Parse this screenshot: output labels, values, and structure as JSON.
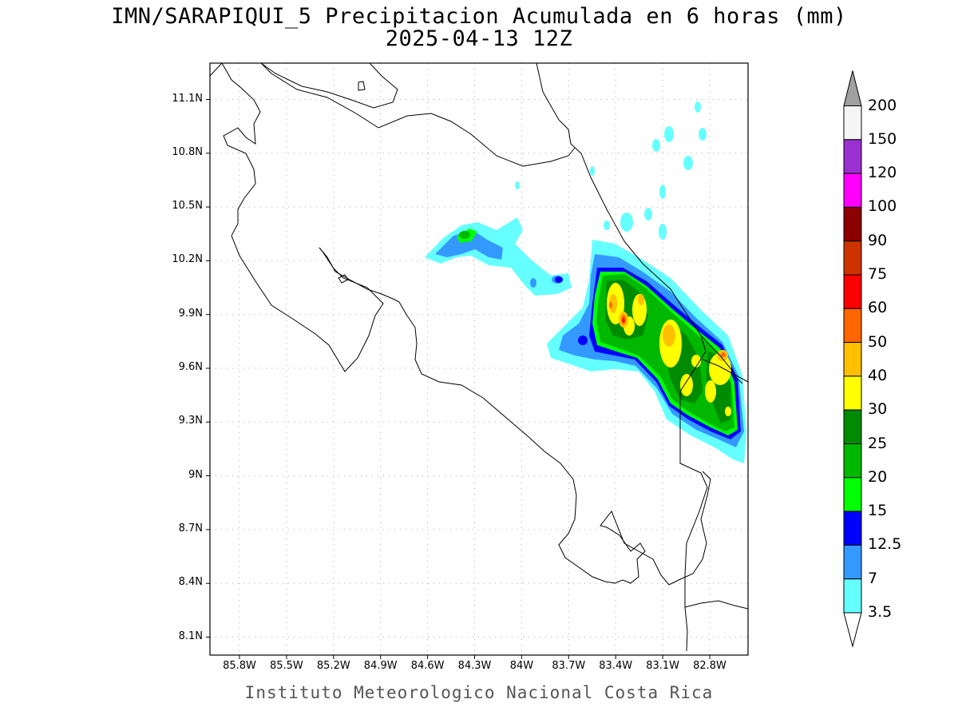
{
  "title": "IMN/SARAPIQUI_5 Precipitacion Acumulada en 6 horas (mm)",
  "subtitle": "2025-04-13 12Z",
  "credit": "Instituto Meteorologico Nacional Costa Rica",
  "map": {
    "lat_ticks": [
      "11.1N",
      "10.8N",
      "10.5N",
      "10.2N",
      "9.9N",
      "9.6N",
      "9.3N",
      "9N",
      "8.7N",
      "8.4N",
      "8.1N"
    ],
    "lon_ticks": [
      "85.8W",
      "85.5W",
      "85.2W",
      "84.9W",
      "84.6W",
      "84.3W",
      "84W",
      "83.7W",
      "83.4W",
      "83.1W",
      "82.8W"
    ],
    "grid": true
  },
  "colorbar": {
    "labels": [
      "200",
      "150",
      "120",
      "100",
      "90",
      "75",
      "60",
      "50",
      "40",
      "30",
      "25",
      "20",
      "15",
      "12.5",
      "7",
      "3.5"
    ],
    "colors": [
      "#f5f5f5",
      "#9b30d0",
      "#ff00ff",
      "#8b0000",
      "#cc3300",
      "#ff0000",
      "#ff6600",
      "#ffc000",
      "#ffff00",
      "#008a00",
      "#00b800",
      "#00ff00",
      "#0000ff",
      "#3399ff",
      "#66ffff"
    ],
    "over_color": "#a0a0a0",
    "under_color": "#ffffff"
  }
}
